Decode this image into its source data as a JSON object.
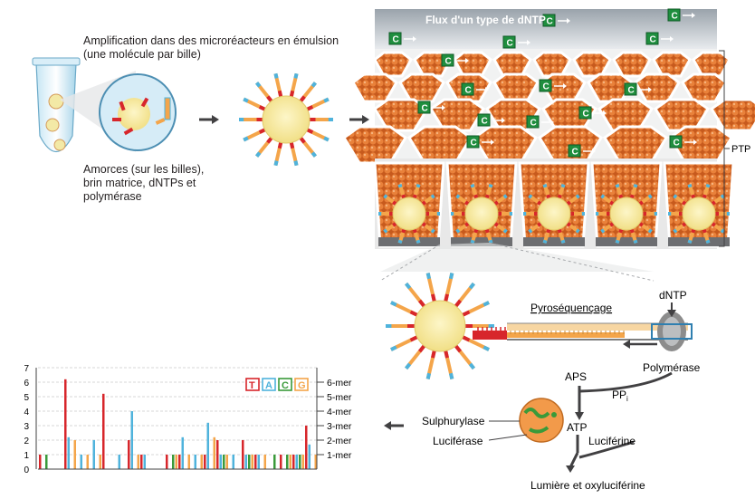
{
  "labels": {
    "amplification": "Amplification dans des microréacteurs en émulsion\n(une molécule par bille)",
    "amorces": "Amorces (sur les billes),\nbrin matrice, dNTPs et\npolymérase",
    "flux": "Flux d'un type de dNTP",
    "ptp": "PTP",
    "pyro": "Pyroséquençage",
    "dntp": "dNTP",
    "polymerase": "Polymérase",
    "aps": "APS",
    "ppi": "PP",
    "ppi_sub": "i",
    "atp": "ATP",
    "sulphurylase": "Sulphurylase",
    "luciferase": "Luciférase",
    "luciferine": "Luciférine",
    "lumiere": "Lumière et oxyluciférine",
    "nucleotide_letter": "C"
  },
  "colors": {
    "bead": "#f3e9a6",
    "bead_core": "#f7e27a",
    "emulsion_drop": "#f2a37c",
    "red": "#d7262b",
    "blue": "#4fb3dc",
    "green": "#3a9a3a",
    "orange": "#f4a54a",
    "well_gray": "#6d6e71",
    "dntp_green": "#1f8e3e"
  },
  "chart_data": {
    "type": "bar",
    "ylim": [
      0,
      7
    ],
    "yticks": [
      "0",
      "1",
      "2",
      "3",
      "4",
      "5",
      "6",
      "7"
    ],
    "right_labels": [
      "1-mer",
      "2-mer",
      "3-mer",
      "4-mer",
      "5-mer",
      "6-mer"
    ],
    "legend": [
      "T",
      "A",
      "C",
      "G"
    ],
    "series_colors": [
      "#d7262b",
      "#4fb3dc",
      "#3a9a3a",
      "#f4a54a"
    ],
    "values": [
      [
        1,
        0,
        1,
        0
      ],
      [
        0,
        0,
        0,
        0
      ],
      [
        6.2,
        2.2,
        0,
        2
      ],
      [
        0,
        1,
        0,
        1
      ],
      [
        0,
        2,
        0,
        1
      ],
      [
        5.2,
        0,
        0,
        0
      ],
      [
        0,
        1,
        0,
        0
      ],
      [
        2,
        4,
        0,
        1
      ],
      [
        1,
        1,
        0,
        0
      ],
      [
        0,
        0,
        0,
        0
      ],
      [
        1,
        0,
        1,
        1
      ],
      [
        1,
        2.2,
        0,
        1
      ],
      [
        0,
        1,
        0,
        1
      ],
      [
        1,
        3.2,
        0,
        2.2
      ],
      [
        2,
        1,
        1,
        1
      ],
      [
        0,
        1,
        0,
        0
      ],
      [
        2,
        1,
        1,
        1
      ],
      [
        1,
        1,
        0,
        1
      ],
      [
        0,
        0,
        1,
        0
      ],
      [
        1,
        0,
        1,
        1
      ],
      [
        1,
        1,
        1,
        1
      ],
      [
        3,
        1.7,
        0,
        1
      ]
    ]
  }
}
